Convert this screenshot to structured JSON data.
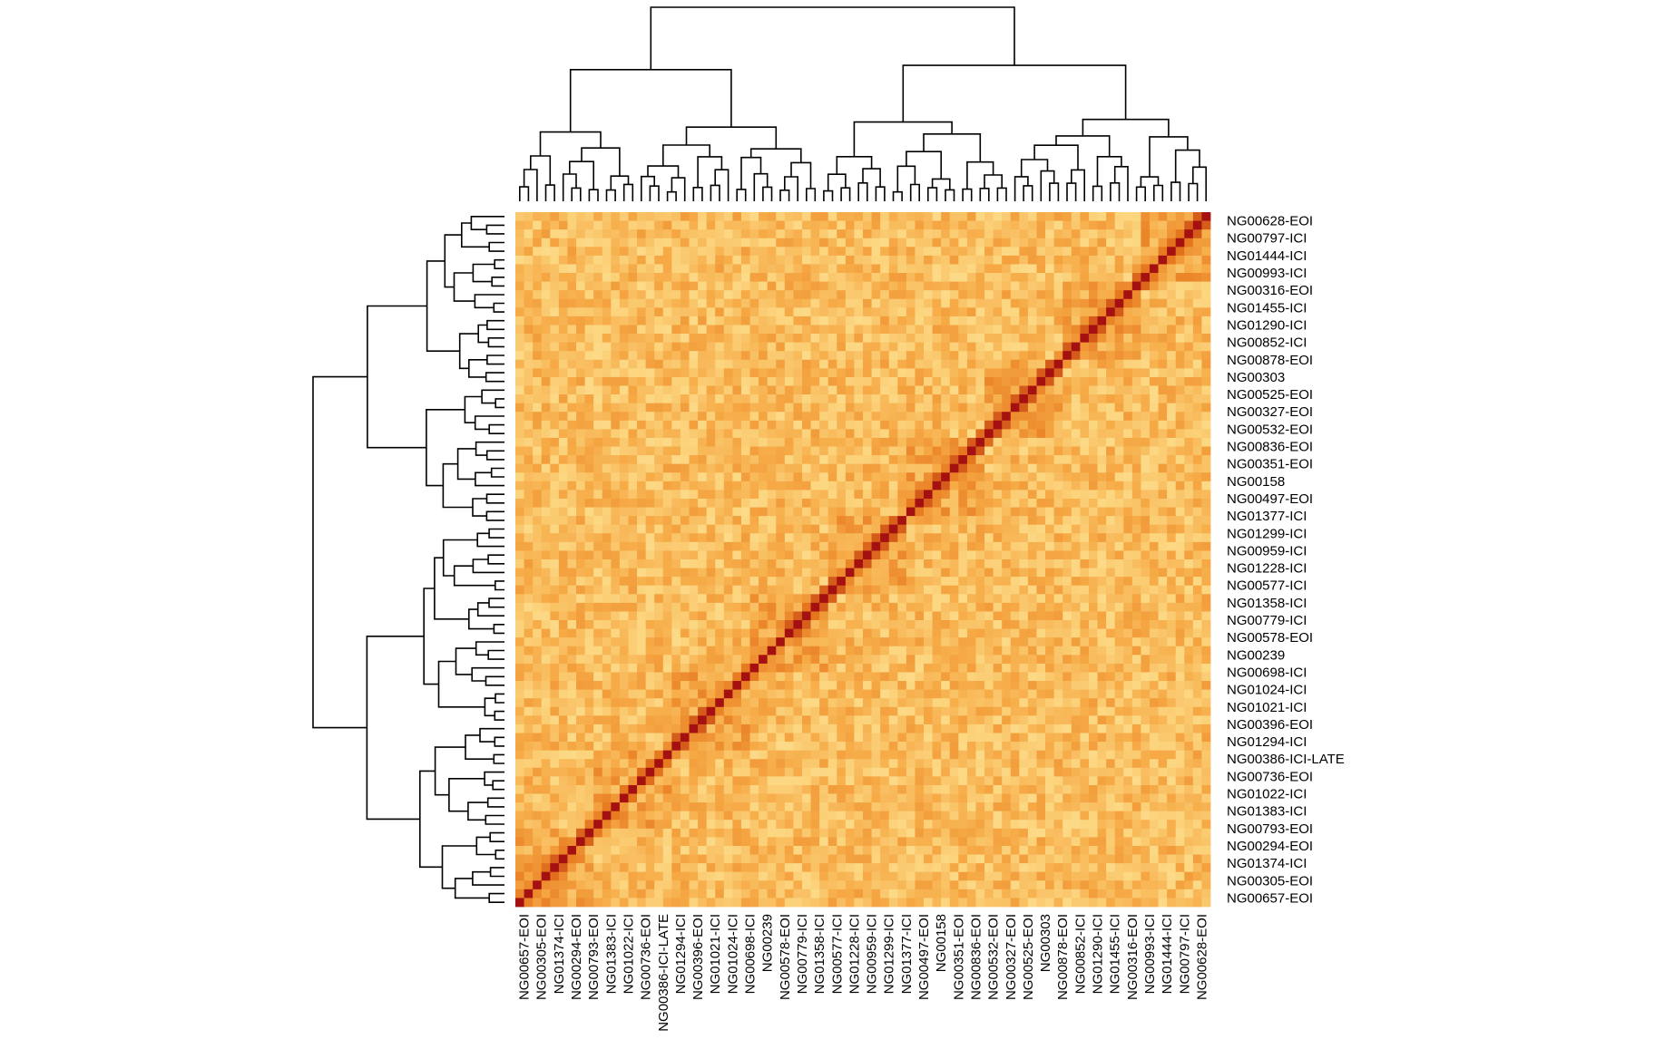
{
  "chart_data": {
    "type": "heatmap",
    "title": "",
    "xlabel": "",
    "ylabel": "",
    "labels": [
      "NG00657-EOI",
      "NG00305-EOI",
      "NG01374-ICI",
      "NG00294-EOI",
      "NG00793-EOI",
      "NG01383-ICI",
      "NG01022-ICI",
      "NG00736-EOI",
      "NG00386-ICI-LATE",
      "NG01294-ICI",
      "NG00396-EOI",
      "NG01021-ICI",
      "NG01024-ICI",
      "NG00698-ICI",
      "NG00239",
      "NG00578-EOI",
      "NG00779-ICI",
      "NG01358-ICI",
      "NG00577-ICI",
      "NG01228-ICI",
      "NG00959-ICI",
      "NG01299-ICI",
      "NG01377-ICI",
      "NG00497-EOI",
      "NG00158",
      "NG00351-EOI",
      "NG00836-EOI",
      "NG00532-EOI",
      "NG00327-EOI",
      "NG00525-EOI",
      "NG00303",
      "NG00878-EOI",
      "NG00852-ICI",
      "NG01290-ICI",
      "NG01455-ICI",
      "NG00316-EOI",
      "NG00993-ICI",
      "NG01444-ICI",
      "NG00797-ICI",
      "NG00628-EOI"
    ],
    "n_cells": 80,
    "diagonal_value": 1.0,
    "value_range": [
      0,
      1
    ],
    "color_scale": {
      "low": "#fff5c2",
      "mid": "#f5a33c",
      "high": "#a51010"
    },
    "dendrograms": {
      "top": true,
      "left": true
    },
    "grid": false,
    "legend": "none"
  }
}
